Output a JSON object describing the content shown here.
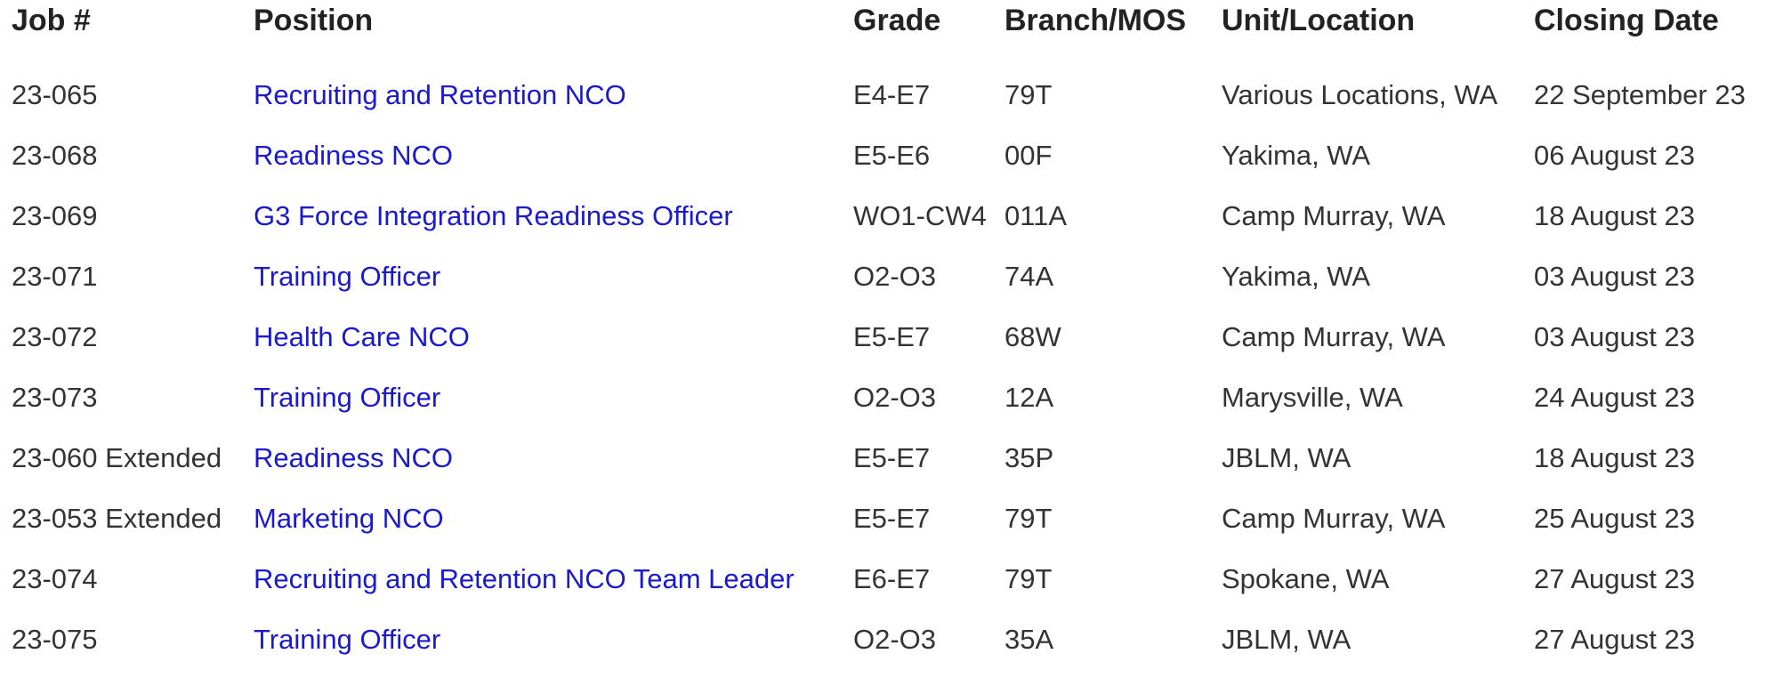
{
  "table": {
    "headers": [
      "Job #",
      "Position",
      "Grade",
      "Branch/MOS",
      "Unit/Location",
      "Closing Date"
    ],
    "rows": [
      [
        "23-065",
        "Recruiting and Retention NCO",
        "E4-E7",
        "79T",
        "Various Locations, WA",
        "22 September 23"
      ],
      [
        "23-068",
        "Readiness NCO",
        "E5-E6",
        "00F",
        "Yakima, WA",
        "06 August 23"
      ],
      [
        "23-069",
        "G3 Force Integration Readiness Officer",
        "WO1-CW4",
        "011A",
        "Camp Murray, WA",
        "18 August 23"
      ],
      [
        "23-071",
        "Training Officer",
        "O2-O3",
        "74A",
        "Yakima, WA",
        "03 August 23"
      ],
      [
        "23-072",
        "Health Care NCO",
        "E5-E7",
        "68W",
        "Camp Murray, WA",
        "03 August 23"
      ],
      [
        "23-073",
        "Training Officer",
        "O2-O3",
        "12A",
        "Marysville, WA",
        "24 August 23"
      ],
      [
        "23-060 Extended",
        "Readiness NCO",
        "E5-E7",
        "35P",
        "JBLM, WA",
        "18 August 23"
      ],
      [
        "23-053 Extended",
        "Marketing NCO",
        "E5-E7",
        "79T",
        "Camp Murray, WA",
        "25 August 23"
      ],
      [
        "23-074",
        "Recruiting and Retention NCO Team Leader",
        "E6-E7",
        "79T",
        "Spokane, WA",
        "27 August 23"
      ],
      [
        "23-075",
        "Training Officer",
        "O2-O3",
        "35A",
        "JBLM, WA",
        "27 August 23"
      ]
    ]
  }
}
